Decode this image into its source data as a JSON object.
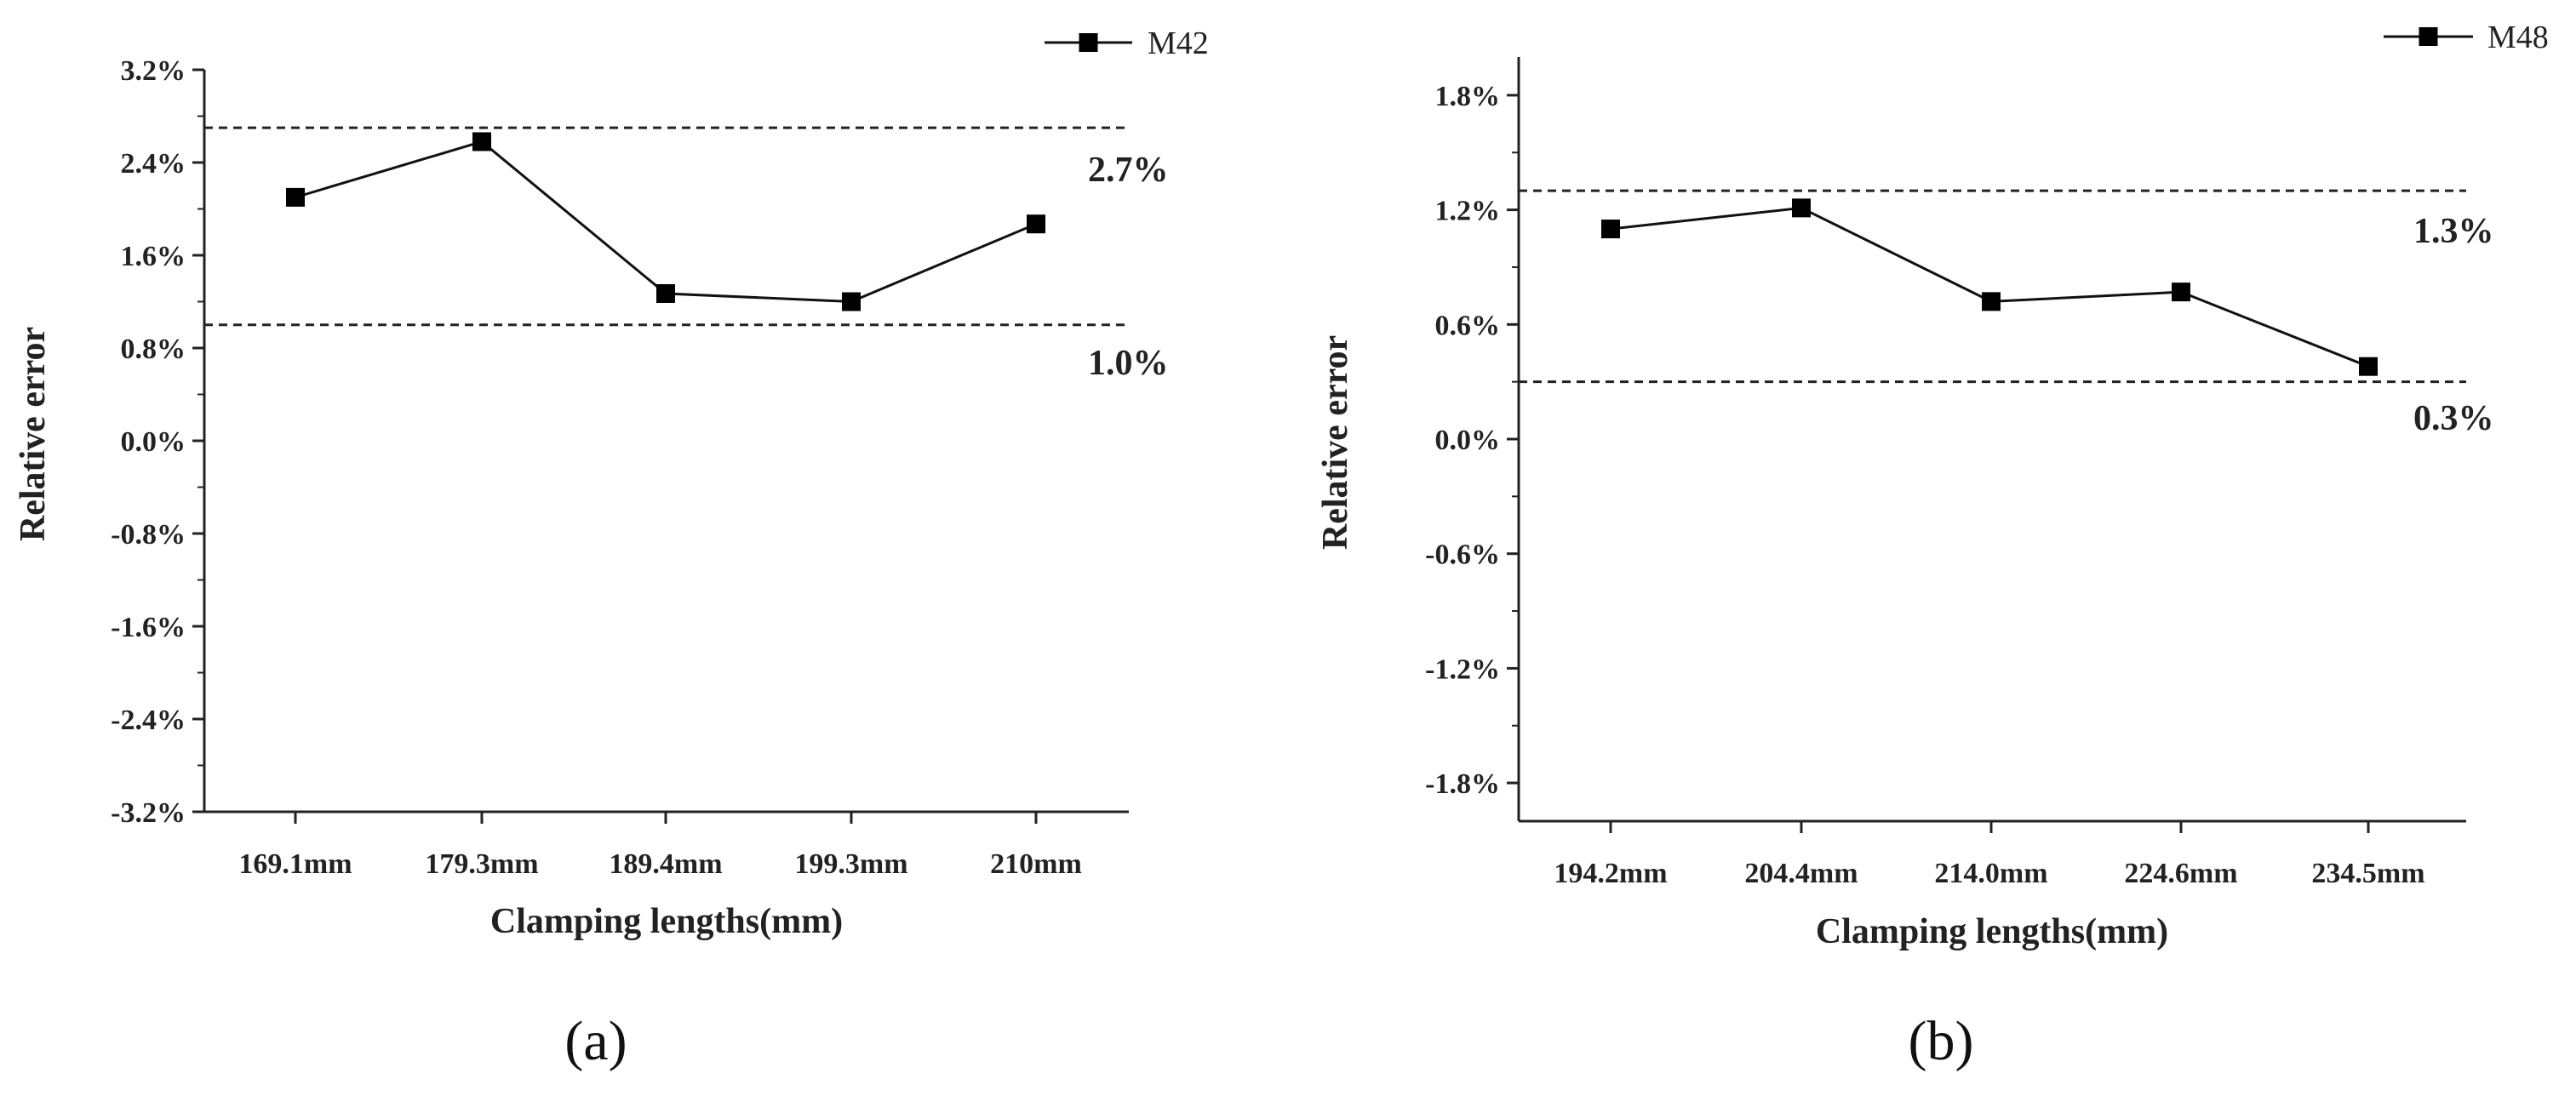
{
  "chart_data": [
    {
      "type": "line",
      "panel_label": "(a)",
      "title": "",
      "xlabel": "Clamping lengths(mm)",
      "ylabel": "Relative error",
      "categories": [
        "169.1mm",
        "179.3mm",
        "189.4mm",
        "199.3mm",
        "210mm"
      ],
      "series": [
        {
          "name": "M42",
          "values": [
            2.1,
            2.58,
            1.27,
            1.2,
            1.87
          ]
        }
      ],
      "ylim": [
        -3.2,
        3.2
      ],
      "yticks": [
        3.2,
        2.4,
        1.6,
        0.8,
        0.0,
        -0.8,
        -1.6,
        -2.4,
        -3.2
      ],
      "ytick_labels": [
        "3.2%",
        "2.4%",
        "1.6%",
        "0.8%",
        "0.0%",
        "-0.8%",
        "-1.6%",
        "-2.4%",
        "-3.2%"
      ],
      "reference_lines": [
        {
          "value": 2.7,
          "label": "2.7%"
        },
        {
          "value": 1.0,
          "label": "1.0%"
        }
      ],
      "legend": "top-right",
      "grid": false
    },
    {
      "type": "line",
      "panel_label": "(b)",
      "title": "",
      "xlabel": "Clamping lengths(mm)",
      "ylabel": "Relative error",
      "categories": [
        "194.2mm",
        "204.4mm",
        "214.0mm",
        "224.6mm",
        "234.5mm"
      ],
      "series": [
        {
          "name": "M48",
          "values": [
            1.1,
            1.21,
            0.72,
            0.77,
            0.38
          ]
        }
      ],
      "ylim": [
        -2.0,
        2.0
      ],
      "yticks": [
        1.8,
        1.2,
        0.6,
        0.0,
        -0.6,
        -1.2,
        -1.8
      ],
      "ytick_labels": [
        "1.8%",
        "1.2%",
        "0.6%",
        "0.0%",
        "-0.6%",
        "-1.2%",
        "-1.8%"
      ],
      "reference_lines": [
        {
          "value": 1.3,
          "label": "1.3%"
        },
        {
          "value": 0.3,
          "label": "0.3%"
        }
      ],
      "legend": "top-right",
      "grid": false
    }
  ]
}
